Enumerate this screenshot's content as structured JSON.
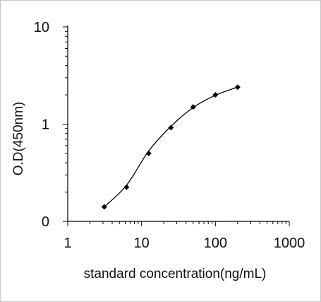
{
  "chart_data": {
    "type": "scatter",
    "xlabel": "standard concentration(ng/mL)",
    "ylabel": "O.D(450nm)",
    "x_scale": "log",
    "xlim": [
      1,
      1000
    ],
    "x_ticks": [
      1,
      10,
      100,
      1000
    ],
    "x_tick_labels": [
      "1",
      "10",
      "100",
      "1000"
    ],
    "y_scale": "log",
    "y_ticks": [
      10,
      1,
      0.1
    ],
    "y_tick_labels": [
      "10",
      "1",
      "0"
    ],
    "points": [
      {
        "x": 3.125,
        "y": 0.141
      },
      {
        "x": 6.25,
        "y": 0.225
      },
      {
        "x": 12.5,
        "y": 0.5
      },
      {
        "x": 25,
        "y": 0.92
      },
      {
        "x": 50,
        "y": 1.5
      },
      {
        "x": 100,
        "y": 2.0
      },
      {
        "x": 200,
        "y": 2.4
      }
    ],
    "fit_curve": [
      {
        "x": 3.125,
        "y": 0.141
      },
      {
        "x": 6.25,
        "y": 0.235
      },
      {
        "x": 12.5,
        "y": 0.53
      },
      {
        "x": 25,
        "y": 0.95
      },
      {
        "x": 50,
        "y": 1.48
      },
      {
        "x": 100,
        "y": 1.98
      },
      {
        "x": 200,
        "y": 2.4
      }
    ],
    "grid": false,
    "marker": "diamond",
    "color": "#000000"
  }
}
